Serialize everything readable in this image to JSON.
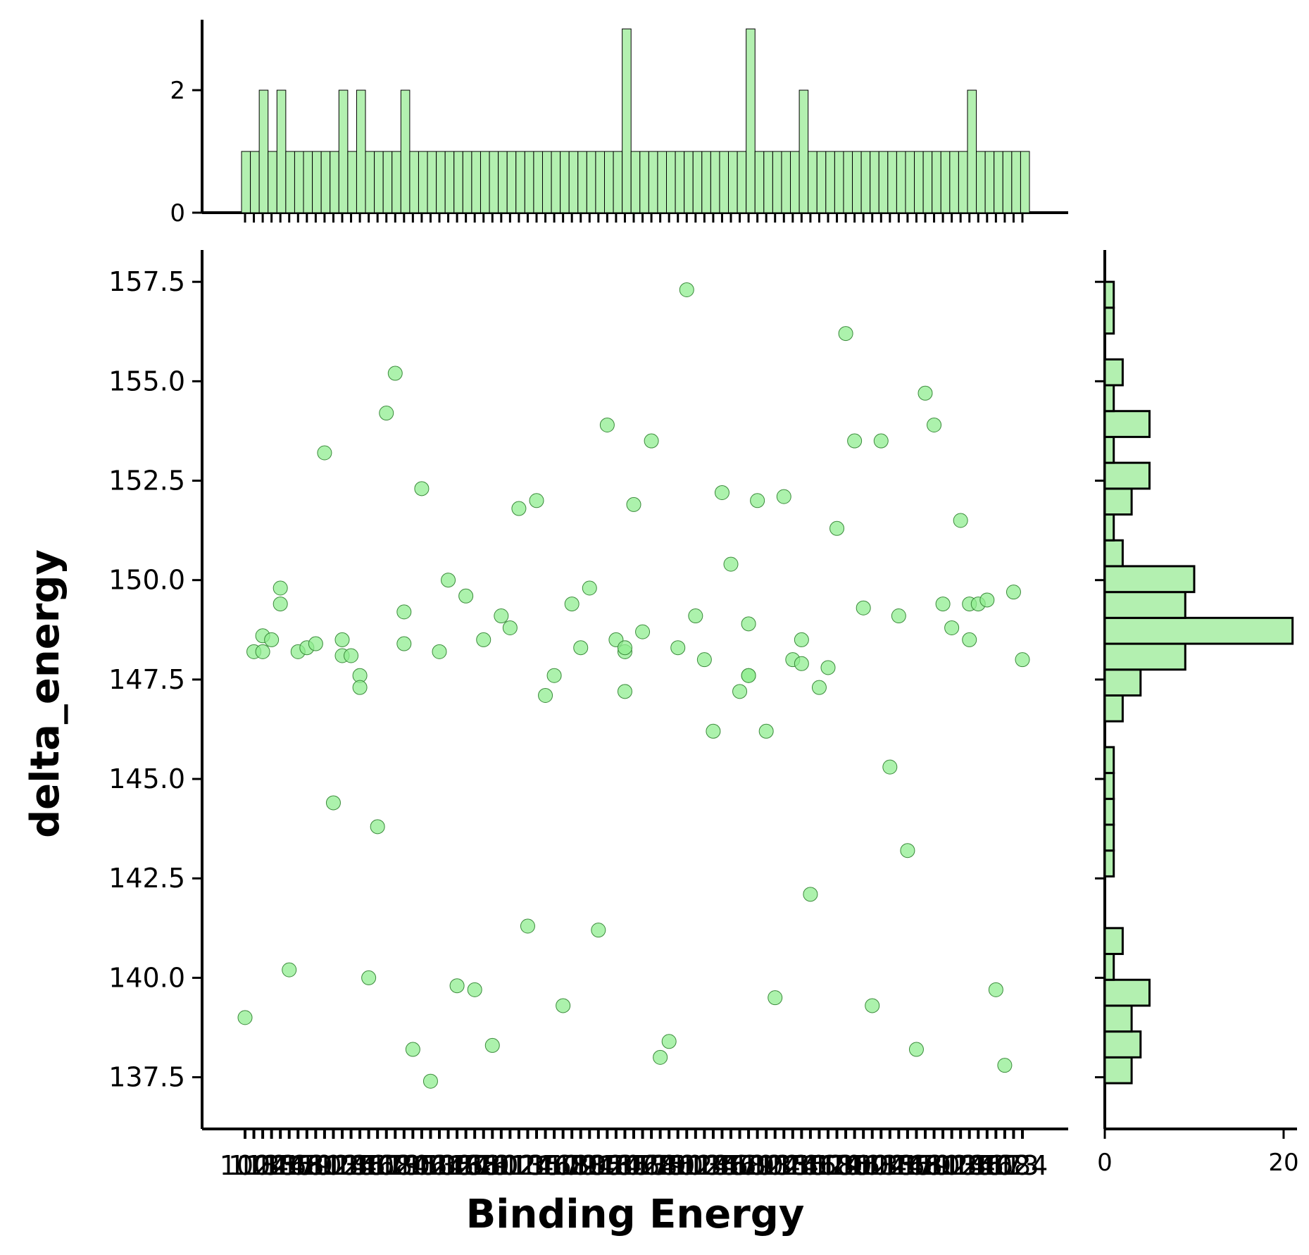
{
  "chart_data": {
    "type": "scatter",
    "xlabel": "Binding Energy",
    "ylabel": "delta_energy",
    "ylim": [
      136.2,
      158.3
    ],
    "yticks": [
      "137.5",
      "140.0",
      "142.5",
      "145.0",
      "147.5",
      "150.0",
      "152.5",
      "155.0",
      "157.5"
    ],
    "grid": false,
    "legend": "none",
    "x_axis": "categorical; 89 unique category ticks whose labels overlap into an unreadable band",
    "points": [
      {
        "x": 0,
        "y": 139.0
      },
      {
        "x": 1,
        "y": 148.2
      },
      {
        "x": 2,
        "y": 148.2
      },
      {
        "x": 2,
        "y": 148.6
      },
      {
        "x": 3,
        "y": 148.5
      },
      {
        "x": 4,
        "y": 149.8
      },
      {
        "x": 4,
        "y": 149.4
      },
      {
        "x": 5,
        "y": 140.2
      },
      {
        "x": 6,
        "y": 148.2
      },
      {
        "x": 7,
        "y": 148.3
      },
      {
        "x": 8,
        "y": 148.4
      },
      {
        "x": 9,
        "y": 153.2
      },
      {
        "x": 10,
        "y": 144.4
      },
      {
        "x": 11,
        "y": 148.5
      },
      {
        "x": 11,
        "y": 148.1
      },
      {
        "x": 12,
        "y": 148.1
      },
      {
        "x": 13,
        "y": 147.6
      },
      {
        "x": 13,
        "y": 147.3
      },
      {
        "x": 14,
        "y": 140.0
      },
      {
        "x": 15,
        "y": 143.8
      },
      {
        "x": 16,
        "y": 154.2
      },
      {
        "x": 17,
        "y": 155.2
      },
      {
        "x": 18,
        "y": 149.2
      },
      {
        "x": 18,
        "y": 148.4
      },
      {
        "x": 19,
        "y": 138.2
      },
      {
        "x": 20,
        "y": 152.3
      },
      {
        "x": 21,
        "y": 137.4
      },
      {
        "x": 22,
        "y": 148.2
      },
      {
        "x": 23,
        "y": 150.0
      },
      {
        "x": 24,
        "y": 139.8
      },
      {
        "x": 25,
        "y": 149.6
      },
      {
        "x": 26,
        "y": 139.7
      },
      {
        "x": 27,
        "y": 148.5
      },
      {
        "x": 28,
        "y": 138.3
      },
      {
        "x": 29,
        "y": 149.1
      },
      {
        "x": 30,
        "y": 148.8
      },
      {
        "x": 31,
        "y": 151.8
      },
      {
        "x": 32,
        "y": 141.3
      },
      {
        "x": 33,
        "y": 152.0
      },
      {
        "x": 34,
        "y": 147.1
      },
      {
        "x": 35,
        "y": 147.6
      },
      {
        "x": 36,
        "y": 139.3
      },
      {
        "x": 37,
        "y": 149.4
      },
      {
        "x": 38,
        "y": 148.3
      },
      {
        "x": 39,
        "y": 149.8
      },
      {
        "x": 40,
        "y": 141.2
      },
      {
        "x": 41,
        "y": 153.9
      },
      {
        "x": 42,
        "y": 148.5
      },
      {
        "x": 43,
        "y": 148.2
      },
      {
        "x": 43,
        "y": 148.3
      },
      {
        "x": 43,
        "y": 147.2
      },
      {
        "x": 44,
        "y": 151.9
      },
      {
        "x": 45,
        "y": 148.7
      },
      {
        "x": 46,
        "y": 153.5
      },
      {
        "x": 47,
        "y": 138.0
      },
      {
        "x": 48,
        "y": 138.4
      },
      {
        "x": 49,
        "y": 148.3
      },
      {
        "x": 50,
        "y": 157.3
      },
      {
        "x": 51,
        "y": 149.1
      },
      {
        "x": 52,
        "y": 148.0
      },
      {
        "x": 53,
        "y": 146.2
      },
      {
        "x": 54,
        "y": 152.2
      },
      {
        "x": 55,
        "y": 150.4
      },
      {
        "x": 56,
        "y": 147.2
      },
      {
        "x": 57,
        "y": 148.9
      },
      {
        "x": 57,
        "y": 147.6
      },
      {
        "x": 57,
        "y": 147.6
      },
      {
        "x": 58,
        "y": 152.0
      },
      {
        "x": 59,
        "y": 146.2
      },
      {
        "x": 60,
        "y": 139.5
      },
      {
        "x": 61,
        "y": 152.1
      },
      {
        "x": 62,
        "y": 148.0
      },
      {
        "x": 63,
        "y": 148.5
      },
      {
        "x": 63,
        "y": 147.9
      },
      {
        "x": 64,
        "y": 142.1
      },
      {
        "x": 65,
        "y": 147.3
      },
      {
        "x": 66,
        "y": 147.8
      },
      {
        "x": 67,
        "y": 151.3
      },
      {
        "x": 68,
        "y": 156.2
      },
      {
        "x": 69,
        "y": 153.5
      },
      {
        "x": 70,
        "y": 149.3
      },
      {
        "x": 71,
        "y": 139.3
      },
      {
        "x": 72,
        "y": 153.5
      },
      {
        "x": 73,
        "y": 145.3
      },
      {
        "x": 74,
        "y": 149.1
      },
      {
        "x": 75,
        "y": 143.2
      },
      {
        "x": 76,
        "y": 138.2
      },
      {
        "x": 77,
        "y": 154.7
      },
      {
        "x": 78,
        "y": 153.9
      },
      {
        "x": 79,
        "y": 149.4
      },
      {
        "x": 80,
        "y": 148.8
      },
      {
        "x": 81,
        "y": 151.5
      },
      {
        "x": 82,
        "y": 149.4
      },
      {
        "x": 82,
        "y": 148.5
      },
      {
        "x": 83,
        "y": 149.4
      },
      {
        "x": 84,
        "y": 149.5
      },
      {
        "x": 85,
        "y": 139.7
      },
      {
        "x": 86,
        "y": 137.8
      },
      {
        "x": 87,
        "y": 149.7
      },
      {
        "x": 88,
        "y": 148.0
      }
    ],
    "top_histogram": {
      "ylim": [
        0,
        3.15
      ],
      "yticks": [
        "0",
        "2"
      ],
      "counts": [
        1,
        1,
        2,
        1,
        2,
        1,
        1,
        1,
        1,
        1,
        1,
        2,
        1,
        2,
        1,
        1,
        1,
        1,
        2,
        1,
        1,
        1,
        1,
        1,
        1,
        1,
        1,
        1,
        1,
        1,
        1,
        1,
        1,
        1,
        1,
        1,
        1,
        1,
        1,
        1,
        1,
        1,
        1,
        3,
        1,
        1,
        1,
        1,
        1,
        1,
        1,
        1,
        1,
        1,
        1,
        1,
        1,
        3,
        1,
        1,
        1,
        1,
        1,
        2,
        1,
        1,
        1,
        1,
        1,
        1,
        1,
        1,
        1,
        1,
        1,
        1,
        1,
        1,
        1,
        1,
        1,
        1,
        2,
        1,
        1,
        1,
        1,
        1,
        1
      ]
    },
    "right_histogram": {
      "xlim": [
        0,
        21.5
      ],
      "xticks": [
        "0",
        "20"
      ],
      "bins": [
        {
          "y0": 137.35,
          "y1": 138.0,
          "count": 3
        },
        {
          "y0": 138.0,
          "y1": 138.65,
          "count": 4
        },
        {
          "y0": 138.65,
          "y1": 139.3,
          "count": 3
        },
        {
          "y0": 139.3,
          "y1": 139.95,
          "count": 5
        },
        {
          "y0": 139.95,
          "y1": 140.6,
          "count": 1
        },
        {
          "y0": 140.6,
          "y1": 141.25,
          "count": 2
        },
        {
          "y0": 142.55,
          "y1": 143.2,
          "count": 1
        },
        {
          "y0": 143.2,
          "y1": 143.85,
          "count": 1
        },
        {
          "y0": 143.85,
          "y1": 144.5,
          "count": 1
        },
        {
          "y0": 144.5,
          "y1": 145.15,
          "count": 1
        },
        {
          "y0": 145.15,
          "y1": 145.8,
          "count": 1
        },
        {
          "y0": 146.45,
          "y1": 147.1,
          "count": 2
        },
        {
          "y0": 147.1,
          "y1": 147.75,
          "count": 4
        },
        {
          "y0": 147.75,
          "y1": 148.4,
          "count": 9
        },
        {
          "y0": 148.4,
          "y1": 149.05,
          "count": 21
        },
        {
          "y0": 149.05,
          "y1": 149.7,
          "count": 9
        },
        {
          "y0": 149.7,
          "y1": 150.35,
          "count": 10
        },
        {
          "y0": 150.35,
          "y1": 151.0,
          "count": 2
        },
        {
          "y0": 151.0,
          "y1": 151.65,
          "count": 1
        },
        {
          "y0": 151.65,
          "y1": 152.3,
          "count": 3
        },
        {
          "y0": 152.3,
          "y1": 152.95,
          "count": 5
        },
        {
          "y0": 152.95,
          "y1": 153.6,
          "count": 1
        },
        {
          "y0": 153.6,
          "y1": 154.25,
          "count": 5
        },
        {
          "y0": 154.25,
          "y1": 154.9,
          "count": 1
        },
        {
          "y0": 154.9,
          "y1": 155.55,
          "count": 2
        },
        {
          "y0": 155.55,
          "y1": 156.2,
          "count": 0
        },
        {
          "y0": 156.2,
          "y1": 156.85,
          "count": 1
        },
        {
          "y0": 156.85,
          "y1": 157.5,
          "count": 1
        }
      ]
    },
    "colors": {
      "marker": "#90ee90",
      "bar": "#b3f0b0",
      "edge": "#000000"
    }
  }
}
